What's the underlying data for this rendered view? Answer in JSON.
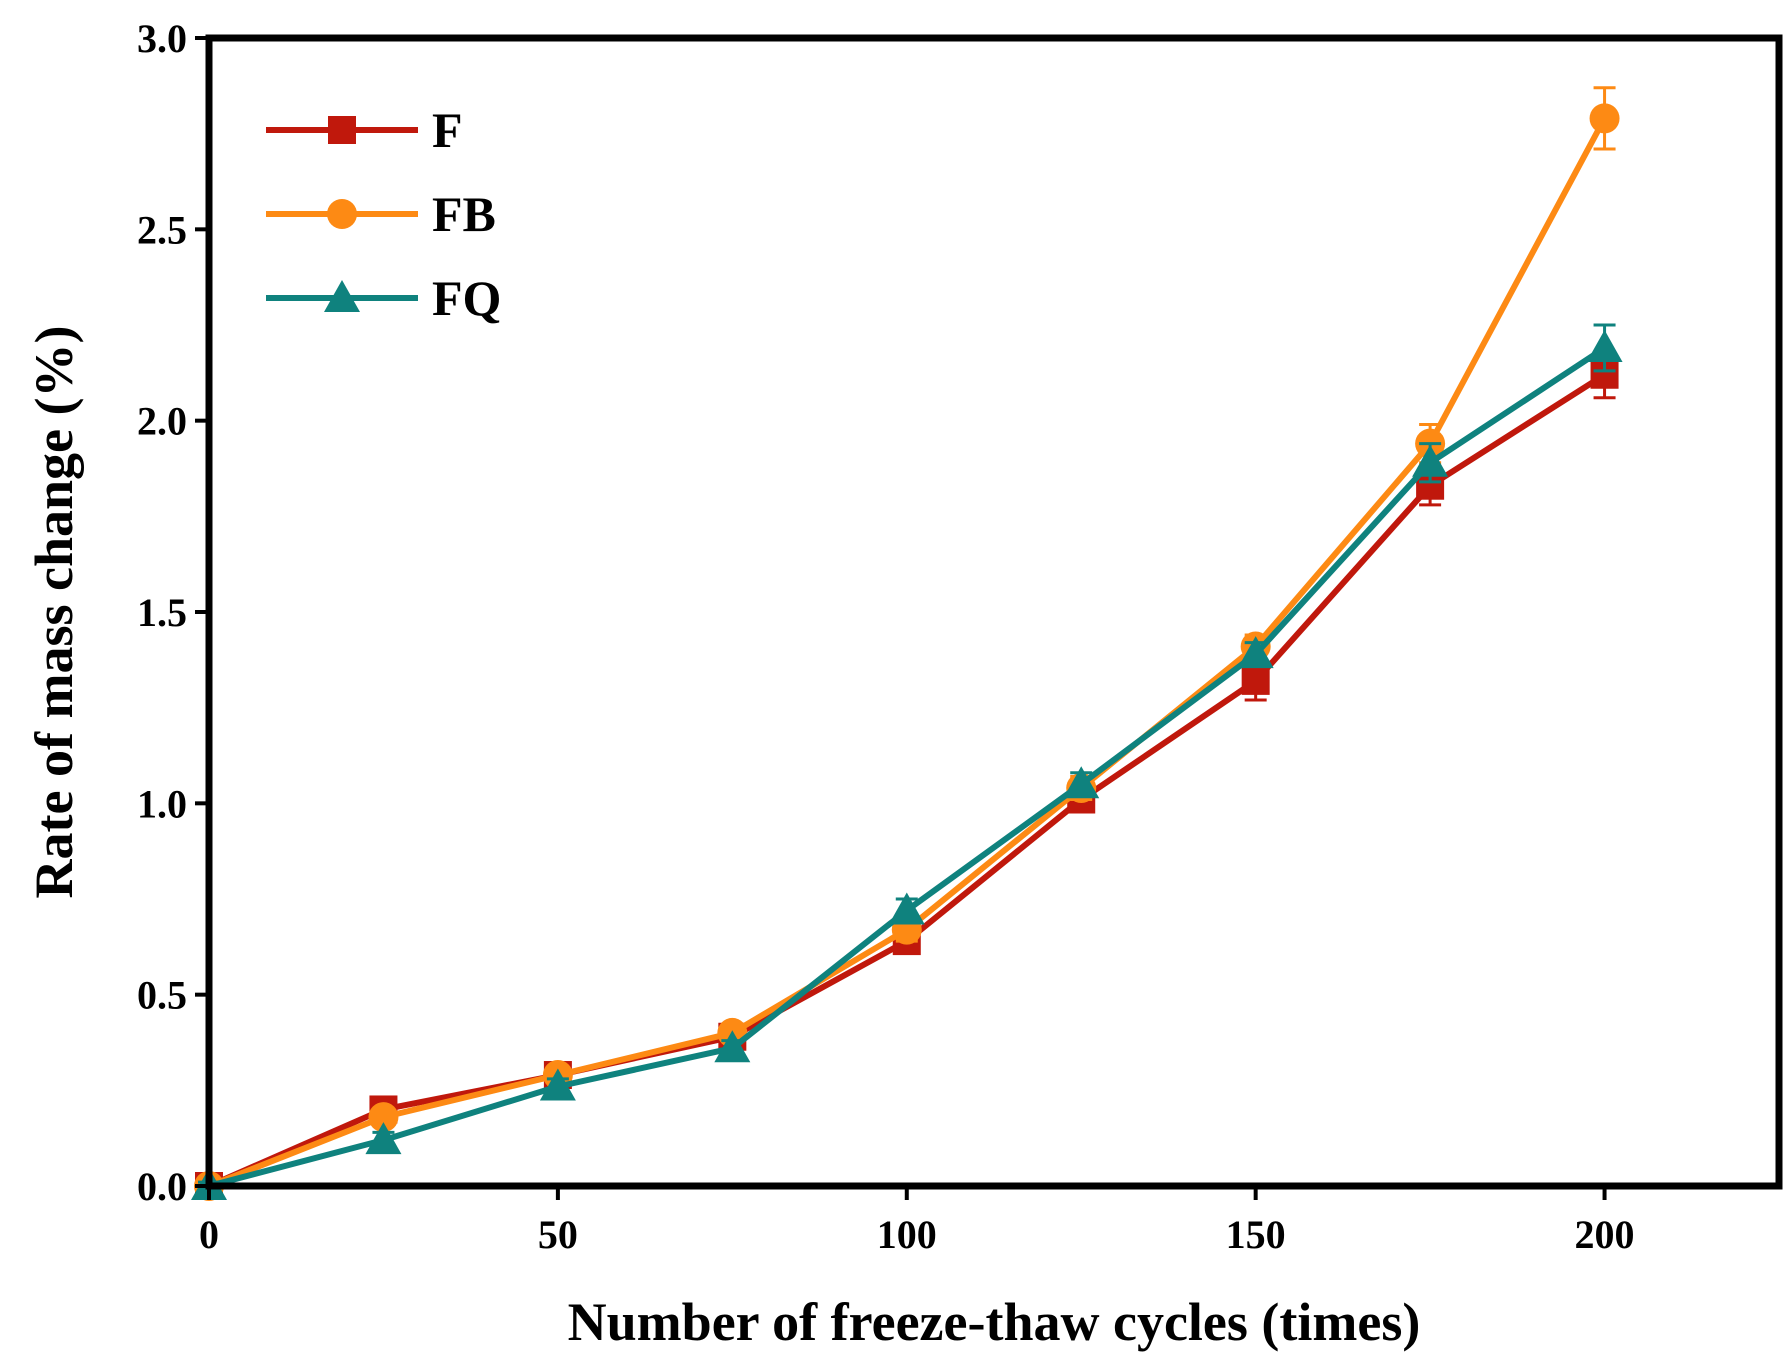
{
  "chart_data": {
    "type": "line",
    "xlabel": "Number of freeze-thaw cycles (times)",
    "ylabel": "Rate of mass change (%)",
    "xlim": [
      0,
      225
    ],
    "ylim": [
      0,
      3.0
    ],
    "x_ticks": [
      0,
      50,
      100,
      150,
      200
    ],
    "x_tick_labels": [
      "0",
      "50",
      "100",
      "150",
      "200"
    ],
    "y_ticks": [
      0,
      0.5,
      1.0,
      1.5,
      2.0,
      2.5,
      3.0
    ],
    "y_tick_labels": [
      "0.0",
      "0.5",
      "1.0",
      "1.5",
      "2.0",
      "2.5",
      "3.0"
    ],
    "grid": false,
    "legend_position": "top-left",
    "x": [
      0,
      25,
      50,
      75,
      100,
      125,
      150,
      175,
      200
    ],
    "series": [
      {
        "name": "F",
        "marker": "square",
        "color": "#c0180c",
        "values": [
          0.0,
          0.2,
          0.29,
          0.39,
          0.64,
          1.01,
          1.32,
          1.83,
          2.12
        ],
        "errors": [
          0.01,
          0.02,
          0.02,
          0.02,
          0.03,
          0.03,
          0.05,
          0.05,
          0.06
        ]
      },
      {
        "name": "FB",
        "marker": "circle",
        "color": "#fd8a14",
        "values": [
          0.0,
          0.18,
          0.29,
          0.4,
          0.67,
          1.04,
          1.41,
          1.94,
          2.79
        ],
        "errors": [
          0.01,
          0.02,
          0.02,
          0.02,
          0.03,
          0.03,
          0.03,
          0.05,
          0.08
        ]
      },
      {
        "name": "FQ",
        "marker": "triangle",
        "color": "#0f827e",
        "values": [
          0.0,
          0.12,
          0.26,
          0.36,
          0.72,
          1.05,
          1.39,
          1.89,
          2.19
        ],
        "errors": [
          0.01,
          0.02,
          0.02,
          0.02,
          0.03,
          0.03,
          0.03,
          0.05,
          0.06
        ]
      }
    ]
  }
}
